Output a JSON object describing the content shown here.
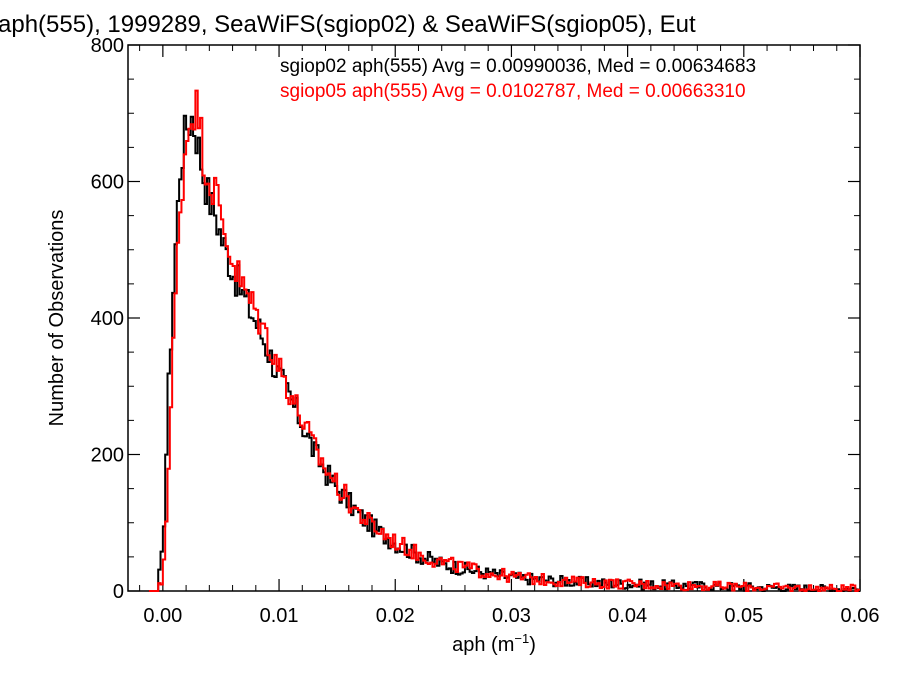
{
  "chart_data": {
    "type": "histogram-step",
    "title": "aph(555), 1999289, SeaWiFS(sgiop02) & SeaWiFS(sgiop05), Eut",
    "xlabel": "aph (m",
    "xlabel_sup": "−1",
    "xlabel_close": ")",
    "ylabel": "Number of Observations",
    "xlim": [
      -0.003,
      0.06
    ],
    "ylim": [
      0,
      800
    ],
    "x_ticks": [
      0.0,
      0.01,
      0.02,
      0.03,
      0.04,
      0.05,
      0.06
    ],
    "x_tick_labels": [
      "0.00",
      "0.01",
      "0.02",
      "0.03",
      "0.04",
      "0.05",
      "0.06"
    ],
    "y_ticks": [
      0,
      200,
      400,
      600,
      800
    ],
    "y_tick_labels": [
      "0",
      "200",
      "400",
      "600",
      "800"
    ],
    "grid": false,
    "legend_position": "top-right",
    "series": [
      {
        "legend": "sgiop02 aph(555) Avg = 0.00990036, Med = 0.00634683",
        "color": "#000000",
        "x": [
          -0.0005,
          0.0,
          0.0005,
          0.001,
          0.0015,
          0.002,
          0.0025,
          0.003,
          0.0035,
          0.004,
          0.0045,
          0.005,
          0.006,
          0.007,
          0.008,
          0.009,
          0.01,
          0.011,
          0.012,
          0.013,
          0.014,
          0.015,
          0.016,
          0.017,
          0.018,
          0.019,
          0.02,
          0.022,
          0.024,
          0.026,
          0.028,
          0.03,
          0.033,
          0.036,
          0.04,
          0.045,
          0.05,
          0.055,
          0.06
        ],
        "y": [
          0,
          60,
          300,
          480,
          620,
          680,
          695,
          660,
          610,
          575,
          555,
          520,
          470,
          430,
          395,
          355,
          315,
          280,
          245,
          205,
          175,
          150,
          130,
          110,
          95,
          82,
          70,
          52,
          40,
          32,
          26,
          20,
          16,
          13,
          10,
          8,
          6,
          4,
          3
        ]
      },
      {
        "legend": "sgiop05 aph(555) Avg = 0.0102787, Med = 0.00663310",
        "color": "#ff0000",
        "x": [
          -0.0005,
          0.0,
          0.0005,
          0.001,
          0.0015,
          0.002,
          0.0025,
          0.003,
          0.0035,
          0.004,
          0.0045,
          0.005,
          0.006,
          0.007,
          0.008,
          0.009,
          0.01,
          0.011,
          0.012,
          0.013,
          0.014,
          0.015,
          0.016,
          0.017,
          0.018,
          0.019,
          0.02,
          0.022,
          0.024,
          0.026,
          0.028,
          0.03,
          0.033,
          0.036,
          0.04,
          0.045,
          0.05,
          0.055,
          0.06
        ],
        "y": [
          0,
          15,
          180,
          400,
          560,
          660,
          705,
          710,
          640,
          600,
          590,
          545,
          485,
          440,
          410,
          370,
          330,
          290,
          250,
          210,
          180,
          155,
          132,
          112,
          96,
          84,
          72,
          54,
          42,
          34,
          27,
          21,
          16,
          13,
          10,
          8,
          6,
          4,
          3
        ]
      }
    ]
  }
}
